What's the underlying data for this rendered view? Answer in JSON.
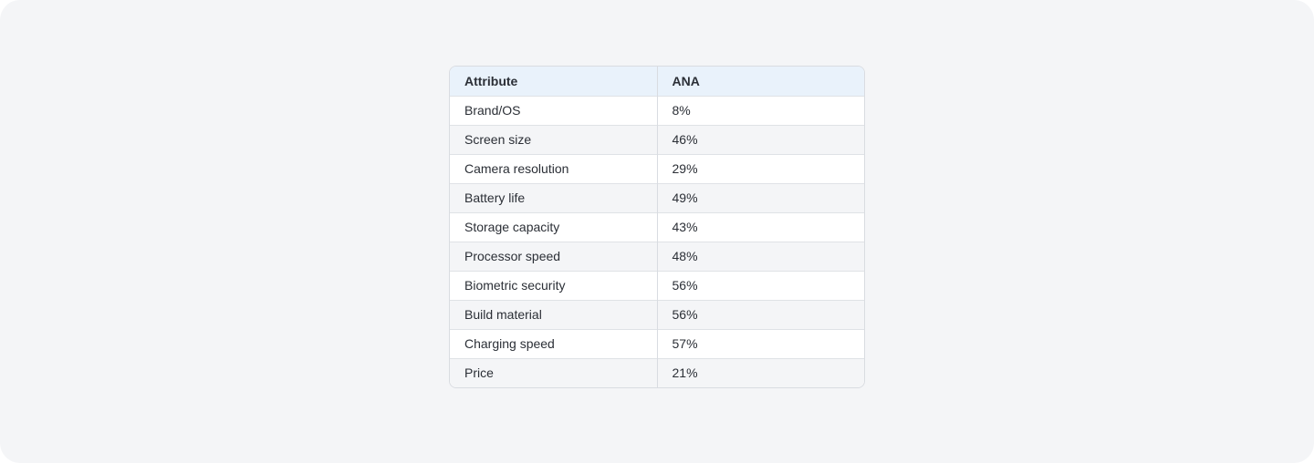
{
  "table": {
    "headers": [
      "Attribute",
      "ANA"
    ],
    "rows": [
      [
        "Brand/OS",
        "8%"
      ],
      [
        "Screen size",
        "46%"
      ],
      [
        "Camera resolution",
        "29%"
      ],
      [
        "Battery life",
        "49%"
      ],
      [
        "Storage capacity",
        "43%"
      ],
      [
        "Processor speed",
        "48%"
      ],
      [
        "Biometric security",
        "56%"
      ],
      [
        "Build material",
        "56%"
      ],
      [
        "Charging speed",
        "57%"
      ],
      [
        "Price",
        "21%"
      ]
    ]
  },
  "colors": {
    "page_background": "#f4f5f7",
    "header_background": "#e9f2fb",
    "stripe_background": "#f4f5f7",
    "border": "#d9dce1",
    "text": "#2b2f36"
  }
}
